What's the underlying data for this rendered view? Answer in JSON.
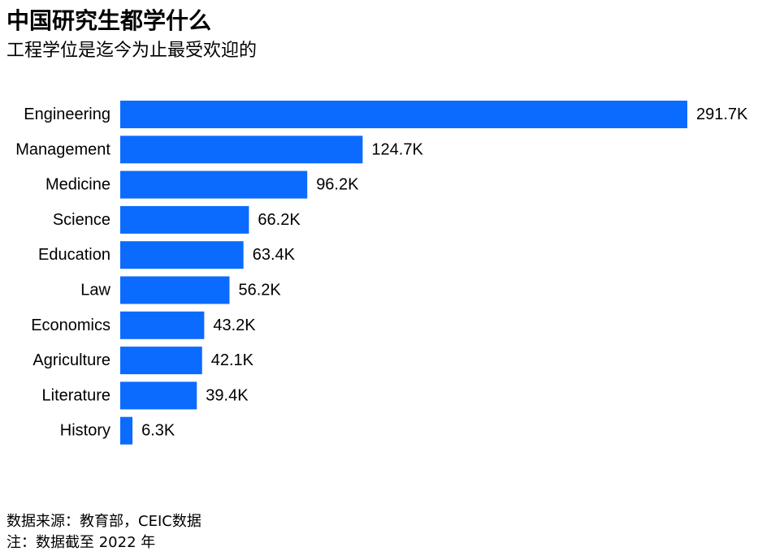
{
  "title": "中国研究生都学什么",
  "subtitle": "工程学位是迄今为止最受欢迎的",
  "source": "数据来源：教育部，CEIC数据",
  "note": "注：数据截至 2022 年",
  "colors": {
    "bar": "#0B6BFF"
  },
  "chart_data": {
    "type": "bar",
    "orientation": "horizontal",
    "title": "中国研究生都学什么",
    "subtitle": "工程学位是迄今为止最受欢迎的",
    "categories": [
      "Engineering",
      "Management",
      "Medicine",
      "Science",
      "Education",
      "Law",
      "Economics",
      "Agriculture",
      "Literature",
      "History"
    ],
    "values": [
      291.7,
      124.7,
      96.2,
      66.2,
      63.4,
      56.2,
      43.2,
      42.1,
      39.4,
      6.3
    ],
    "labels": [
      "291.7K",
      "124.7K",
      "96.2K",
      "66.2K",
      "63.4K",
      "56.2K",
      "43.2K",
      "42.1K",
      "39.4K",
      "6.3K"
    ],
    "unit": "K",
    "xlim": [
      0,
      291.7
    ],
    "grid": false,
    "legend": "none"
  }
}
